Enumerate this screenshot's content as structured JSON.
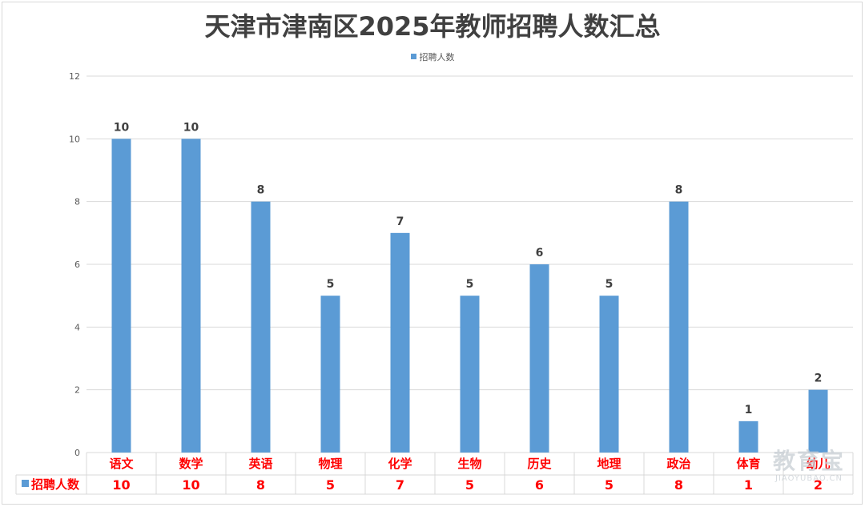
{
  "chart_data": {
    "type": "bar",
    "title": "天津市津南区2025年教师招聘人数汇总",
    "categories": [
      "语文",
      "数学",
      "英语",
      "物理",
      "化学",
      "生物",
      "历史",
      "地理",
      "政治",
      "体育",
      "幼儿"
    ],
    "series": [
      {
        "name": "招聘人数",
        "values": [
          10,
          10,
          8,
          5,
          7,
          5,
          6,
          5,
          8,
          1,
          2
        ]
      }
    ],
    "ylim": [
      0,
      12
    ],
    "yticks": [
      0,
      2,
      4,
      6,
      8,
      10,
      12
    ],
    "grid": true,
    "legend_position": "top",
    "data_table": true,
    "colors": {
      "bar": "#5b9bd5",
      "category_label": "#ff0000",
      "data_label": "#404040",
      "grid": "#d9d9d9"
    }
  },
  "watermark": {
    "text": "教育宝",
    "subtext": "JIAOYUBAO.CN"
  }
}
